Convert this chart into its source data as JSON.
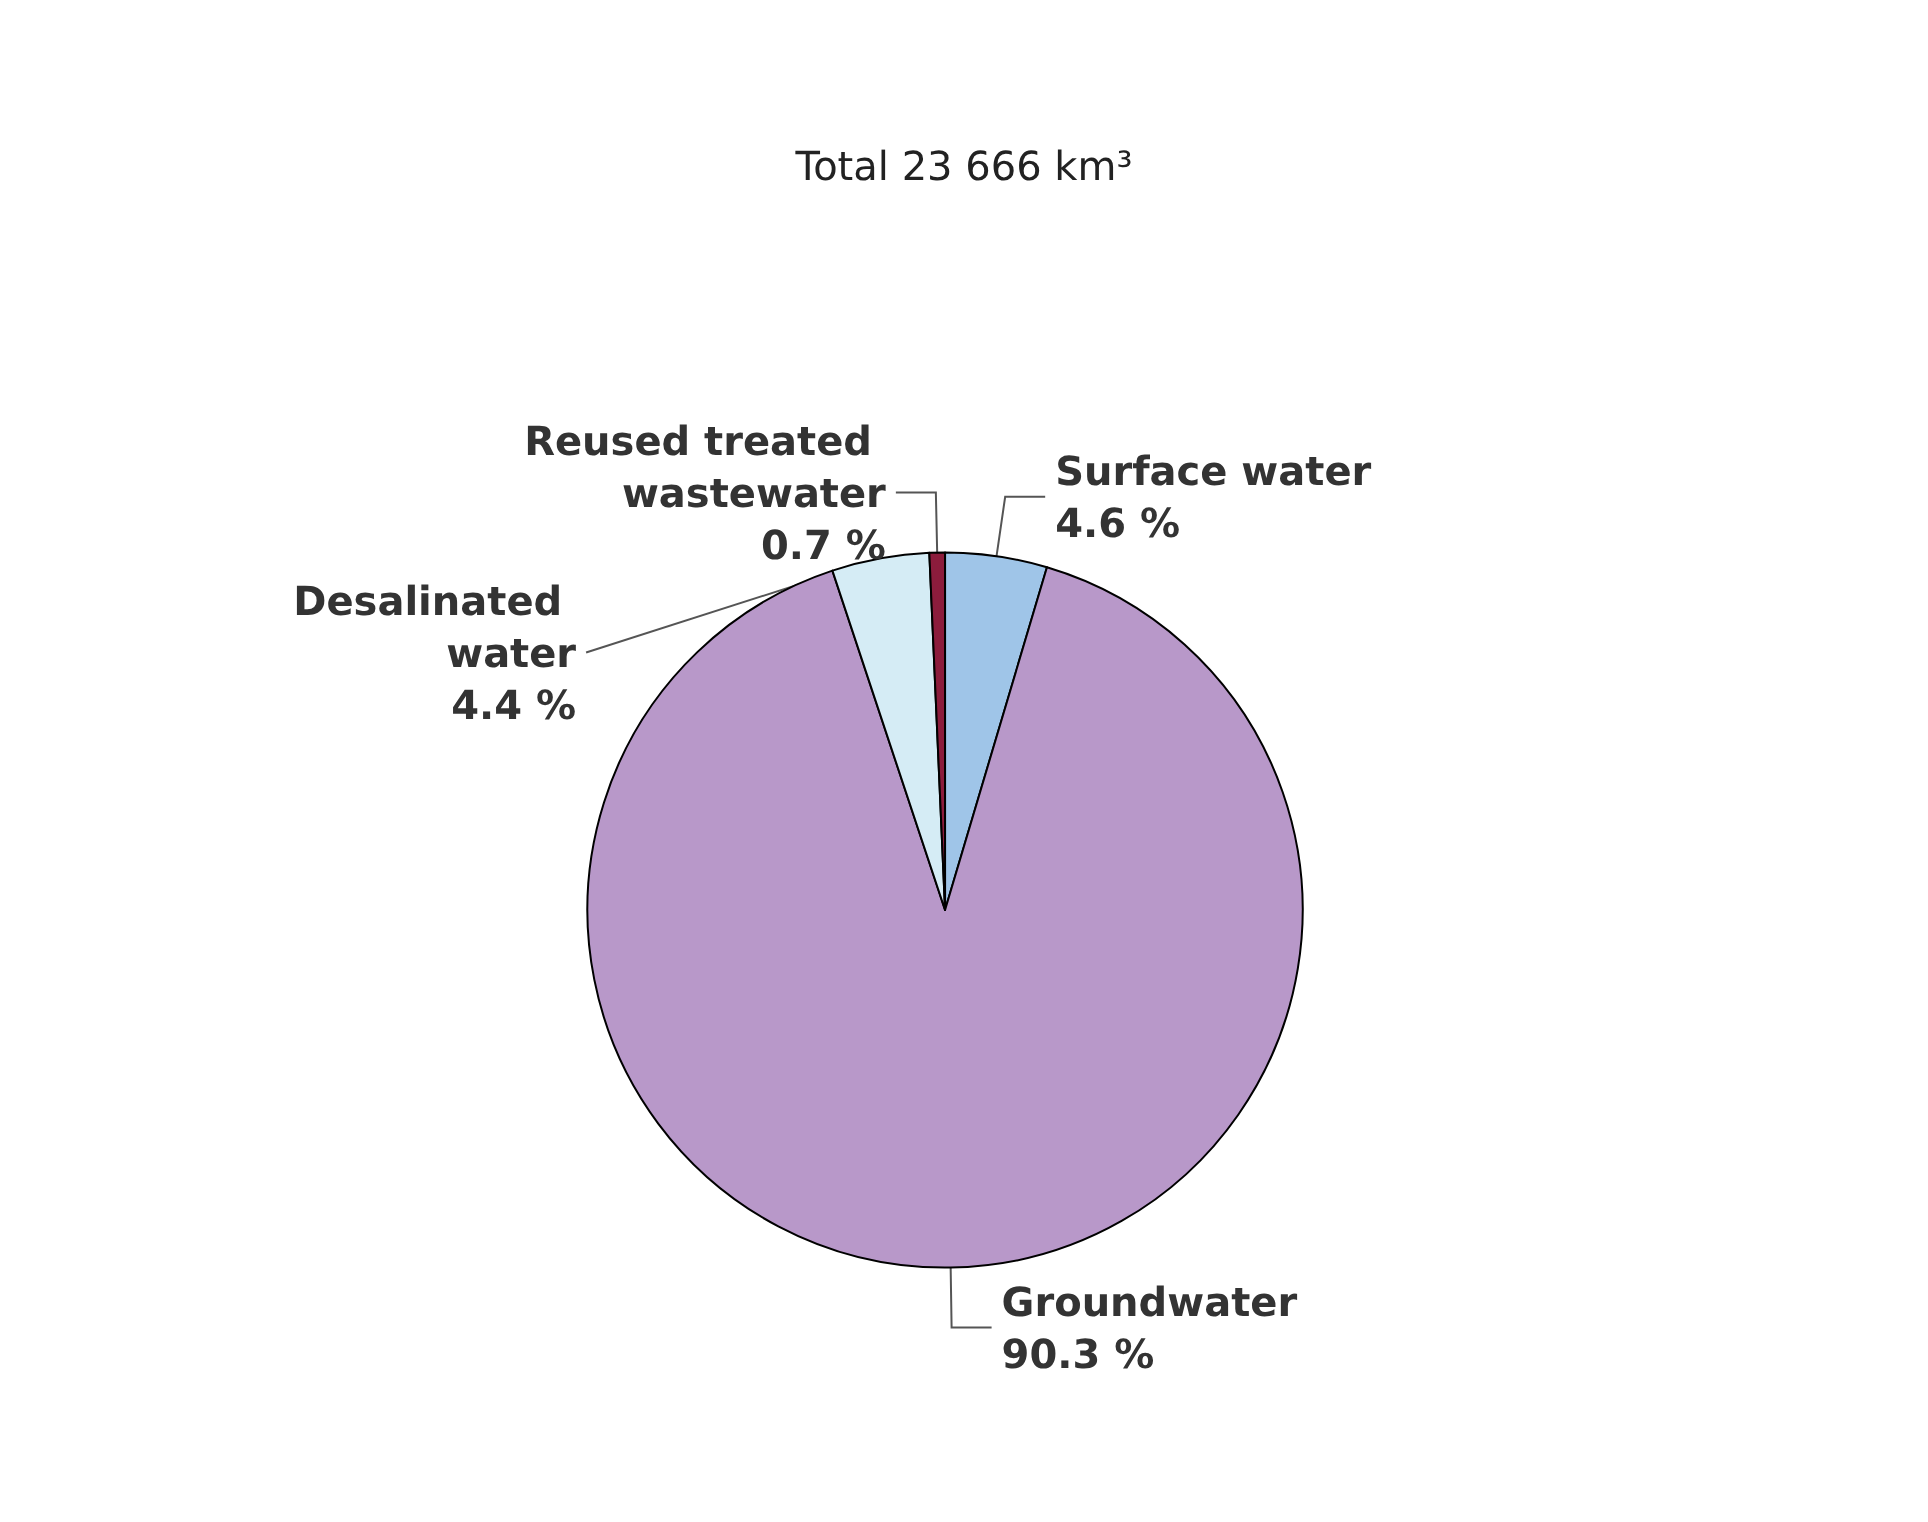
{
  "chart_data": {
    "type": "pie",
    "title": "Total 23 666 km³",
    "categories": [
      "Surface water",
      "Groundwater",
      "Desalinated water",
      "Reused treated wastewater"
    ],
    "values": [
      4.6,
      90.3,
      4.4,
      0.7
    ],
    "value_labels": [
      "4.6 %",
      "90.3 %",
      "4.4 %",
      "0.7 %"
    ],
    "colors": [
      "#9fc5e8",
      "#b898c9",
      "#d5ecf5",
      "#8c1c3c"
    ],
    "legend": false
  }
}
